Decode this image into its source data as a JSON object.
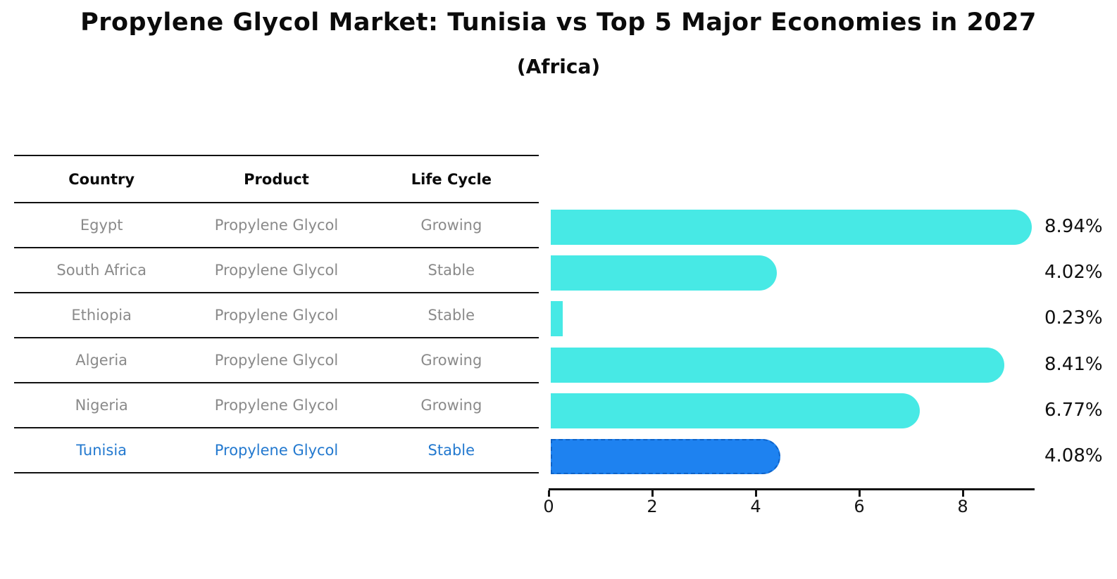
{
  "chart_data": {
    "type": "bar",
    "orientation": "horizontal",
    "title": "Propylene Glycol Market: Tunisia vs Top 5 Major Economies in 2027",
    "subtitle": "(Africa)",
    "categories": [
      "Egypt",
      "South Africa",
      "Ethiopia",
      "Algeria",
      "Nigeria",
      "Tunisia"
    ],
    "values": [
      8.94,
      4.02,
      0.23,
      8.41,
      6.77,
      4.08
    ],
    "value_labels": [
      "8.94%",
      "4.02%",
      "0.23%",
      "8.41%",
      "6.77%",
      "4.08%"
    ],
    "xticks": [
      "0",
      "2",
      "4",
      "6",
      "8"
    ],
    "xtick_values": [
      0,
      2,
      4,
      6,
      8
    ],
    "xlim": [
      0,
      9.4
    ],
    "grid": false,
    "legend": false,
    "bar_color": "#47E9E5",
    "highlight_bar_color": "#1E82F0",
    "highlight_border_color": "#0E63C8",
    "highlight_index": 5,
    "highlight_category": "Tunisia"
  },
  "table": {
    "columns": [
      "Country",
      "Product",
      "Life Cycle"
    ],
    "rows": [
      {
        "country": "Egypt",
        "product": "Propylene Glycol",
        "life_cycle": "Growing",
        "highlight": false
      },
      {
        "country": "South Africa",
        "product": "Propylene Glycol",
        "life_cycle": "Stable",
        "highlight": false
      },
      {
        "country": "Ethiopia",
        "product": "Propylene Glycol",
        "life_cycle": "Stable",
        "highlight": false
      },
      {
        "country": "Algeria",
        "product": "Propylene Glycol",
        "life_cycle": "Growing",
        "highlight": false
      },
      {
        "country": "Nigeria",
        "product": "Propylene Glycol",
        "life_cycle": "Growing",
        "highlight": false
      },
      {
        "country": "Tunisia",
        "product": "Propylene Glycol",
        "life_cycle": "Stable",
        "highlight": true
      }
    ]
  },
  "colors": {
    "table_text": "#8a8a8a",
    "header_text": "#0a0a0a",
    "highlight_text": "#2379cf",
    "axis": "#111111"
  }
}
